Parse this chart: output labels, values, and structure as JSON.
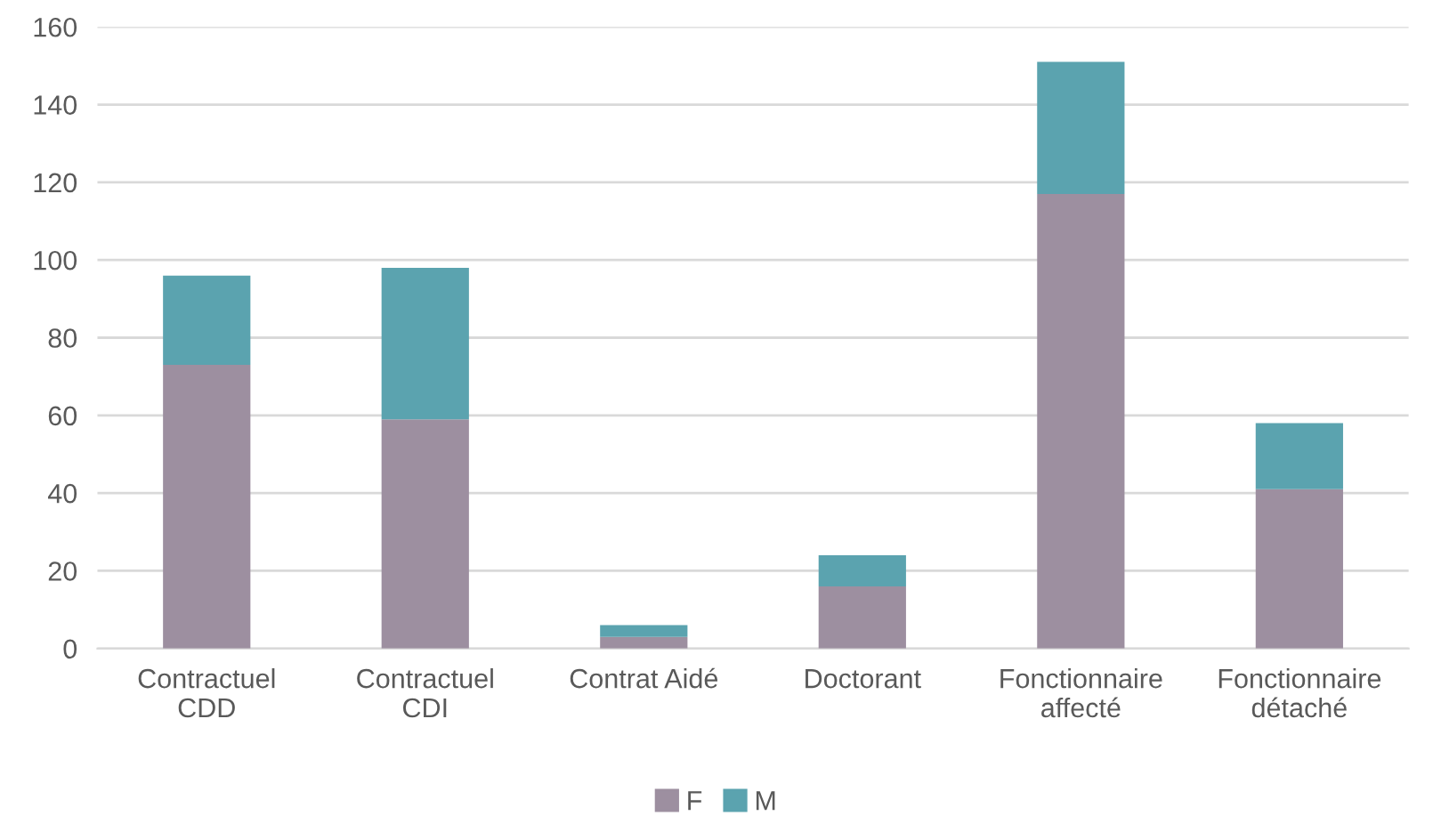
{
  "chart_data": {
    "type": "bar",
    "stacked": true,
    "categories": [
      "Contractuel\nCDD",
      "Contractuel\nCDI",
      "Contrat Aidé",
      "Doctorant",
      "Fonctionnaire\naffecté",
      "Fonctionnaire\ndétaché"
    ],
    "series": [
      {
        "name": "F",
        "color": "#9d8fa0",
        "values": [
          73,
          59,
          3,
          16,
          117,
          41
        ]
      },
      {
        "name": "M",
        "color": "#5ba3af",
        "values": [
          23,
          39,
          3,
          8,
          34,
          17
        ]
      }
    ],
    "ylim": [
      0,
      160
    ],
    "yticks": [
      0,
      20,
      40,
      60,
      80,
      100,
      120,
      140,
      160
    ],
    "grid": "y",
    "legend": "bottom"
  }
}
